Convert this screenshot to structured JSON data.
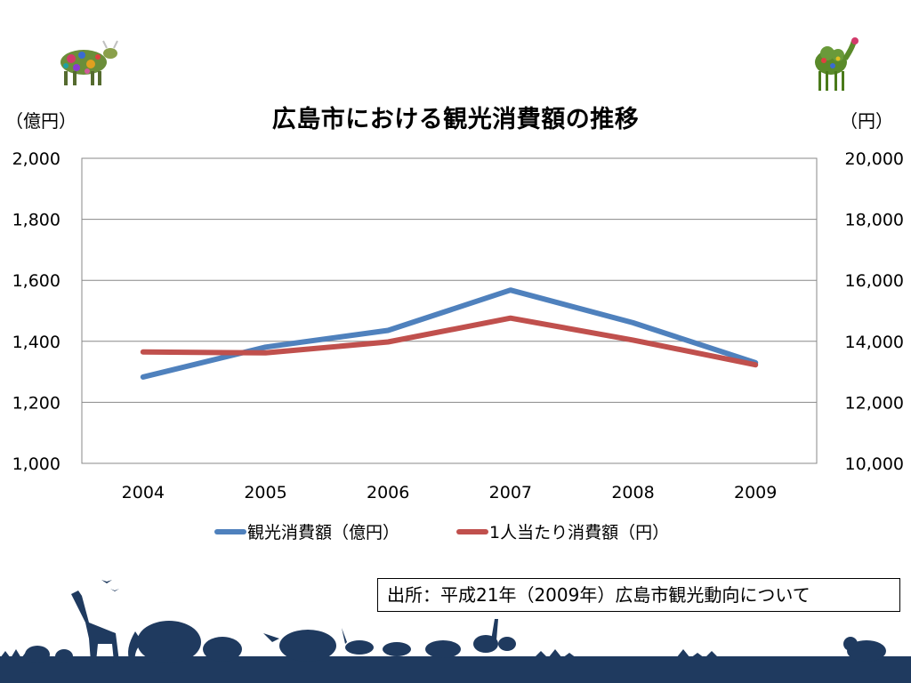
{
  "slide": {
    "title": "広島市における観光消費額の推移",
    "unit_left": "（億円）",
    "unit_right": "（円）",
    "source": "出所：平成21年（2009年）広島市観光動向について"
  },
  "colors": {
    "series_blue": "#4f81bd",
    "series_red": "#c0504d",
    "gridline": "#888888",
    "silhouette": "#1f3a5f"
  },
  "decorations": {
    "top_left": "cow-illustration",
    "top_right": "camel-illustration",
    "bottom": "animal-silhouettes-banner"
  },
  "chart_data": {
    "type": "line",
    "title": "広島市における観光消費額の推移",
    "categories": [
      "2004",
      "2005",
      "2006",
      "2007",
      "2008",
      "2009"
    ],
    "y_left": {
      "label": "（億円）",
      "range": [
        1000,
        2000
      ],
      "ticks": [
        "1,000",
        "1,200",
        "1,400",
        "1,600",
        "1,800",
        "2,000"
      ]
    },
    "y_right": {
      "label": "（円）",
      "range": [
        10000,
        20000
      ],
      "ticks": [
        "10,000",
        "12,000",
        "14,000",
        "16,000",
        "18,000",
        "20,000"
      ]
    },
    "grid": true,
    "legend_position": "bottom",
    "series": [
      {
        "name": "観光消費額（億円）",
        "axis": "left",
        "color": "#4f81bd",
        "values": [
          1283,
          1381,
          1436,
          1568,
          1461,
          1330
        ]
      },
      {
        "name": "1人当たり消費額（円）",
        "axis": "right",
        "color": "#c0504d",
        "values": [
          13650,
          13620,
          13980,
          14760,
          14040,
          13230
        ]
      }
    ]
  }
}
